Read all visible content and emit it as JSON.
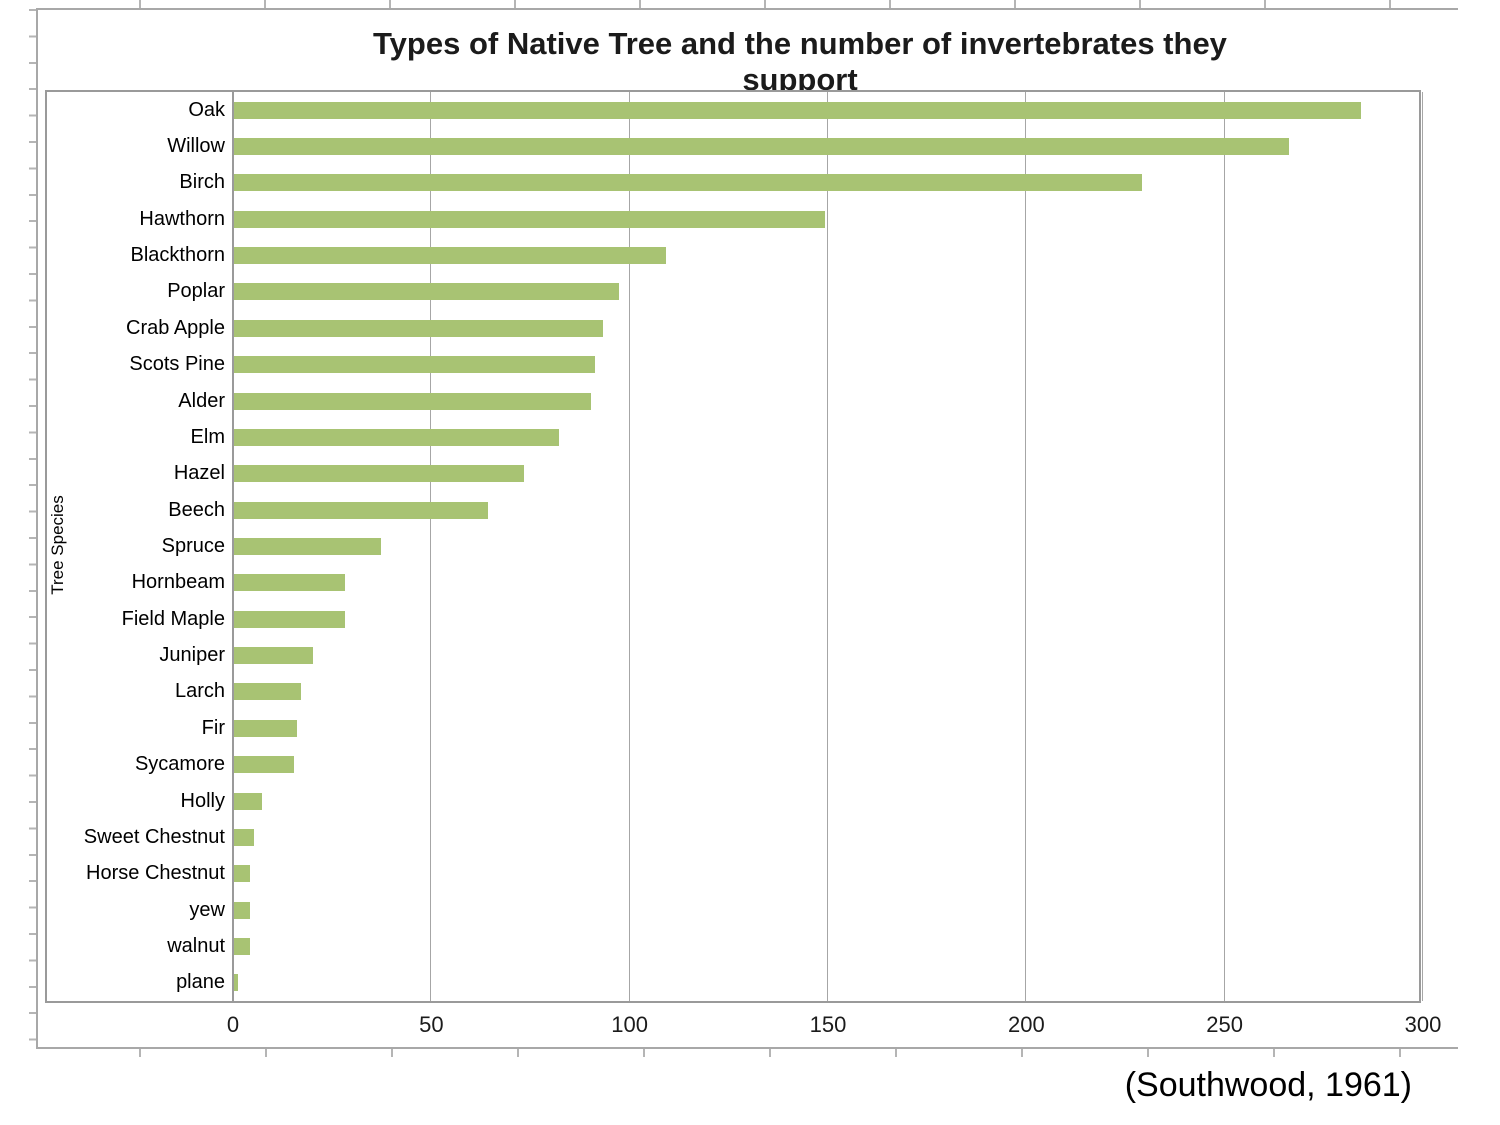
{
  "chart_data": {
    "type": "bar",
    "orientation": "horizontal",
    "title": "Types of Native Tree and the number of invertebrates they support",
    "xlabel": "",
    "ylabel": "Tree Species",
    "xlim": [
      0,
      300
    ],
    "xticks": [
      "0",
      "50",
      "100",
      "150",
      "200",
      "250",
      "300"
    ],
    "grid": "vertical gridlines at each x tick",
    "legend_position": "none",
    "categories": [
      "Oak",
      "Willow",
      "Birch",
      "Hawthorn",
      "Blackthorn",
      "Poplar",
      "Crab Apple",
      "Scots Pine",
      "Alder",
      "Elm",
      "Hazel",
      "Beech",
      "Spruce",
      "Hornbeam",
      "Field Maple",
      "Juniper",
      "Larch",
      "Fir",
      "Sycamore",
      "Holly",
      "Sweet Chestnut",
      "Horse Chestnut",
      "yew",
      "walnut",
      "plane"
    ],
    "values": [
      284,
      266,
      229,
      149,
      109,
      97,
      93,
      91,
      90,
      82,
      73,
      64,
      37,
      28,
      28,
      20,
      17,
      16,
      15,
      7,
      5,
      4,
      4,
      4,
      1
    ]
  },
  "attribution": "(Southwood, 1961)",
  "colors": {
    "bar": "#a8c373",
    "gridline": "#a6a6a6",
    "plot_border": "#9a9a9a",
    "frame": "#a8a8a8",
    "text": "#1a1a1a"
  }
}
